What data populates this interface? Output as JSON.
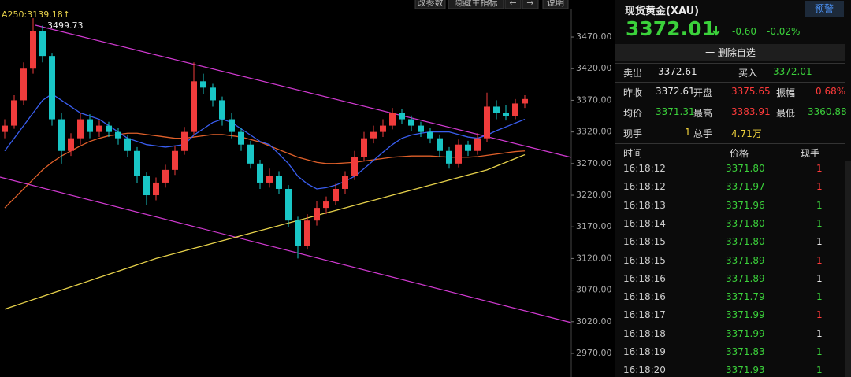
{
  "toolbar": {
    "buttons": [
      "改参数",
      "隐藏主指标",
      "←",
      "→",
      "说明"
    ]
  },
  "chart_data": {
    "type": "candlestick",
    "indicator_label": "A250:3139.18↑",
    "up_color": "#f03c3c",
    "down_color": "#19c6c6",
    "ylim": [
      2932.7,
      3528.5
    ],
    "yticks": [
      {
        "value": 3470,
        "label": "3470.00"
      },
      {
        "value": 3420,
        "label": "3420.00"
      },
      {
        "value": 3370,
        "label": "3370.00"
      },
      {
        "value": 3320,
        "label": "3320.00"
      },
      {
        "value": 3270,
        "label": "3270.00"
      },
      {
        "value": 3220,
        "label": "3220.00"
      },
      {
        "value": 3170,
        "label": "3170.00"
      },
      {
        "value": 3120,
        "label": "3120.00"
      },
      {
        "value": 3070,
        "label": "3070.00"
      },
      {
        "value": 3020,
        "label": "3020.00"
      },
      {
        "value": 2970,
        "label": "2970.00"
      }
    ],
    "candles": [
      [
        3320,
        3340,
        3310,
        3330
      ],
      [
        3330,
        3378,
        3325,
        3370
      ],
      [
        3370,
        3430,
        3362,
        3420
      ],
      [
        3420,
        3499.73,
        3412,
        3480
      ],
      [
        3480,
        3488,
        3430,
        3440
      ],
      [
        3440,
        3445,
        3330,
        3340
      ],
      [
        3340,
        3350,
        3270,
        3290
      ],
      [
        3290,
        3318,
        3282,
        3310
      ],
      [
        3310,
        3350,
        3300,
        3340
      ],
      [
        3340,
        3348,
        3310,
        3320
      ],
      [
        3320,
        3338,
        3312,
        3330
      ],
      [
        3330,
        3336,
        3312,
        3320
      ],
      [
        3320,
        3326,
        3300,
        3310
      ],
      [
        3310,
        3316,
        3280,
        3290
      ],
      [
        3290,
        3296,
        3240,
        3250
      ],
      [
        3250,
        3256,
        3205,
        3220
      ],
      [
        3220,
        3248,
        3212,
        3240
      ],
      [
        3240,
        3268,
        3232,
        3260
      ],
      [
        3260,
        3298,
        3252,
        3290
      ],
      [
        3290,
        3328,
        3284,
        3320
      ],
      [
        3320,
        3430,
        3315,
        3400
      ],
      [
        3400,
        3412,
        3380,
        3390
      ],
      [
        3390,
        3396,
        3360,
        3370
      ],
      [
        3370,
        3376,
        3330,
        3340
      ],
      [
        3340,
        3350,
        3310,
        3320
      ],
      [
        3320,
        3326,
        3290,
        3300
      ],
      [
        3300,
        3306,
        3262,
        3270
      ],
      [
        3270,
        3276,
        3230,
        3240
      ],
      [
        3240,
        3262,
        3232,
        3250
      ],
      [
        3250,
        3258,
        3222,
        3230
      ],
      [
        3230,
        3236,
        3170,
        3180
      ],
      [
        3180,
        3186,
        3120,
        3140
      ],
      [
        3140,
        3190,
        3134,
        3180
      ],
      [
        3180,
        3210,
        3172,
        3200
      ],
      [
        3200,
        3218,
        3190,
        3210
      ],
      [
        3210,
        3238,
        3204,
        3230
      ],
      [
        3230,
        3258,
        3222,
        3250
      ],
      [
        3250,
        3290,
        3244,
        3280
      ],
      [
        3280,
        3320,
        3274,
        3310
      ],
      [
        3310,
        3330,
        3302,
        3320
      ],
      [
        3320,
        3340,
        3312,
        3330
      ],
      [
        3330,
        3358,
        3324,
        3350
      ],
      [
        3350,
        3356,
        3332,
        3340
      ],
      [
        3340,
        3346,
        3322,
        3330
      ],
      [
        3330,
        3336,
        3312,
        3320
      ],
      [
        3320,
        3326,
        3302,
        3310
      ],
      [
        3310,
        3316,
        3280,
        3290
      ],
      [
        3290,
        3296,
        3262,
        3270
      ],
      [
        3270,
        3308,
        3264,
        3300
      ],
      [
        3300,
        3306,
        3282,
        3290
      ],
      [
        3290,
        3318,
        3284,
        3310
      ],
      [
        3310,
        3382,
        3304,
        3360
      ],
      [
        3360,
        3370,
        3340,
        3350
      ],
      [
        3350,
        3362,
        3338,
        3345
      ],
      [
        3345,
        3372,
        3340,
        3365
      ],
      [
        3365,
        3378,
        3358,
        3372
      ]
    ],
    "moving_averages": [
      {
        "color": "#e6d14a",
        "values": [
          3040,
          3045,
          3050,
          3055,
          3060,
          3065,
          3070,
          3075,
          3080,
          3085,
          3090,
          3095,
          3100,
          3105,
          3110,
          3115,
          3120,
          3124,
          3128,
          3132,
          3136,
          3140,
          3144,
          3148,
          3152,
          3156,
          3160,
          3164,
          3168,
          3172,
          3176,
          3180,
          3184,
          3188,
          3192,
          3196,
          3200,
          3204,
          3208,
          3212,
          3216,
          3220,
          3224,
          3228,
          3232,
          3236,
          3240,
          3244,
          3248,
          3252,
          3256,
          3260,
          3266,
          3272,
          3278,
          3284
        ]
      },
      {
        "color": "#e0602a",
        "values": [
          3200,
          3215,
          3230,
          3245,
          3260,
          3272,
          3282,
          3290,
          3298,
          3305,
          3310,
          3314,
          3316,
          3318,
          3318,
          3316,
          3314,
          3312,
          3310,
          3310,
          3312,
          3314,
          3316,
          3316,
          3314,
          3312,
          3308,
          3304,
          3298,
          3292,
          3286,
          3280,
          3276,
          3272,
          3270,
          3270,
          3271,
          3272,
          3274,
          3276,
          3278,
          3280,
          3281,
          3282,
          3282,
          3282,
          3281,
          3280,
          3280,
          3280,
          3281,
          3283,
          3285,
          3287,
          3289,
          3290
        ]
      },
      {
        "color": "#3a5ef0",
        "values": [
          3290,
          3310,
          3330,
          3350,
          3370,
          3380,
          3370,
          3360,
          3350,
          3345,
          3340,
          3330,
          3320,
          3310,
          3305,
          3300,
          3298,
          3296,
          3298,
          3300,
          3315,
          3325,
          3335,
          3340,
          3335,
          3325,
          3315,
          3305,
          3300,
          3285,
          3270,
          3250,
          3238,
          3230,
          3232,
          3236,
          3242,
          3250,
          3262,
          3275,
          3288,
          3300,
          3310,
          3315,
          3318,
          3320,
          3320,
          3320,
          3316,
          3312,
          3310,
          3315,
          3322,
          3328,
          3334,
          3340
        ]
      }
    ]
  },
  "panel": {
    "title": "现货黄金(XAU)",
    "alert": "预警",
    "price": "3372.01",
    "change": "-0.60",
    "change_pct": "-0.02%",
    "remove": "一 删除自选",
    "quote": {
      "sell_label": "卖出",
      "sell": "3372.61",
      "sell_vol": "---",
      "buy_label": "买入",
      "buy": "3372.01",
      "buy_vol": "---",
      "prev_label": "昨收",
      "prev": "3372.61",
      "open_label": "开盘",
      "open": "3375.65",
      "amp_label": "振幅",
      "amp": "0.68%",
      "avg_label": "均价",
      "avg": "3371.31",
      "high_label": "最高",
      "high": "3383.91",
      "low_label": "最低",
      "low": "3360.88",
      "cur_label": "现手",
      "cur": "1",
      "total_label": "总手",
      "total": "4.71万"
    },
    "ticks_header": [
      "时间",
      "价格",
      "现手"
    ],
    "ticks": [
      {
        "time": "16:18:12",
        "price": "3371.80",
        "qty": "1",
        "color": "#ff3b3b"
      },
      {
        "time": "16:18:12",
        "price": "3371.97",
        "qty": "1",
        "color": "#ff3b3b"
      },
      {
        "time": "16:18:13",
        "price": "3371.96",
        "qty": "1",
        "color": "#3bd13b"
      },
      {
        "time": "16:18:14",
        "price": "3371.80",
        "qty": "1",
        "color": "#3bd13b"
      },
      {
        "time": "16:18:15",
        "price": "3371.80",
        "qty": "1",
        "color": "#e8e8e8"
      },
      {
        "time": "16:18:15",
        "price": "3371.89",
        "qty": "1",
        "color": "#ff3b3b"
      },
      {
        "time": "16:18:16",
        "price": "3371.89",
        "qty": "1",
        "color": "#e8e8e8"
      },
      {
        "time": "16:18:16",
        "price": "3371.79",
        "qty": "1",
        "color": "#3bd13b"
      },
      {
        "time": "16:18:17",
        "price": "3371.99",
        "qty": "1",
        "color": "#ff3b3b"
      },
      {
        "time": "16:18:18",
        "price": "3371.99",
        "qty": "1",
        "color": "#e8e8e8"
      },
      {
        "time": "16:18:19",
        "price": "3371.83",
        "qty": "1",
        "color": "#3bd13b"
      },
      {
        "time": "16:18:20",
        "price": "3371.93",
        "qty": "1",
        "color": "#3bd13b"
      }
    ]
  }
}
